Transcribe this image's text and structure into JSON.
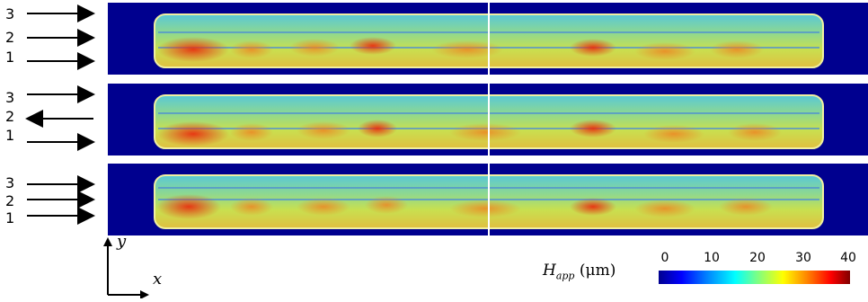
{
  "arrow_labels": {
    "panel1": [
      "3",
      "2",
      "1"
    ],
    "panel2": [
      "3",
      "2",
      "1"
    ],
    "panel3": [
      "3",
      "2",
      "1"
    ]
  },
  "arrow_directions": {
    "panel1": [
      "right",
      "right",
      "right"
    ],
    "panel2": [
      "right",
      "left",
      "right"
    ],
    "panel3": [
      "right",
      "right",
      "right"
    ]
  },
  "axes": {
    "y": "y",
    "x": "x"
  },
  "colorbar": {
    "title_symbol": "H",
    "title_subscript": "app",
    "title_unit": " (μm)",
    "ticks": [
      "0",
      "10",
      "20",
      "30",
      "40"
    ],
    "colors": {
      "low": "#00008f",
      "mid": "#80ff80",
      "high": "#800000"
    }
  },
  "colors": {
    "background_field": "#00008f",
    "track_base": "#a8e04a",
    "divider_line": "#ffffff"
  }
}
